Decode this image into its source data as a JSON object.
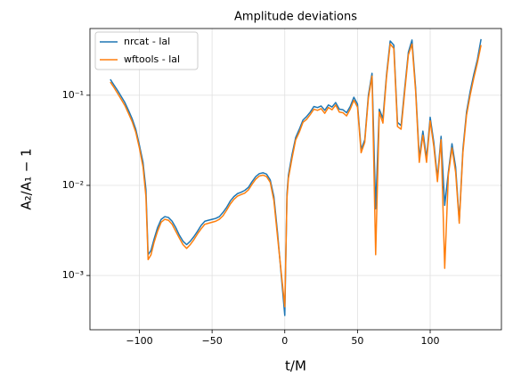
{
  "chart_data": {
    "type": "line",
    "title": "Amplitude deviations",
    "xlabel": "t/M",
    "ylabel": "A₂/A₁ − 1",
    "x": [
      -120,
      -117.5,
      -115,
      -112.5,
      -110,
      -107.5,
      -105,
      -102.5,
      -100,
      -97.5,
      -95.5,
      -94,
      -92,
      -90,
      -87.5,
      -85,
      -82.5,
      -80,
      -77.5,
      -75,
      -72.5,
      -70,
      -67.5,
      -65,
      -62.5,
      -60,
      -57.5,
      -55,
      -52.5,
      -50,
      -47.5,
      -45,
      -42.5,
      -40,
      -37.5,
      -35,
      -32.5,
      -30,
      -27.5,
      -25,
      -22.5,
      -20,
      -17.5,
      -15,
      -12.5,
      -10,
      -7.5,
      -5,
      0,
      1.5,
      2.5,
      5,
      7.5,
      10,
      12.5,
      15,
      17.5,
      20,
      22.5,
      25,
      27.5,
      30,
      32.5,
      35,
      37.5,
      40,
      42.5,
      45,
      47.5,
      50,
      52.5,
      55,
      57.5,
      60,
      62.5,
      65,
      67.5,
      70,
      72.5,
      75,
      77.5,
      80,
      82.5,
      85,
      87.5,
      90,
      92.5,
      95,
      97.5,
      100,
      102.5,
      105,
      107.5,
      110,
      112.5,
      115,
      117.5,
      120,
      122.5,
      125,
      127.5,
      130,
      132.5,
      135
    ],
    "series": [
      {
        "name": "nrcat - lal",
        "color": "#1f77b4",
        "values": [
          0.15,
          0.13,
          0.113,
          0.097,
          0.083,
          0.068,
          0.055,
          0.042,
          0.028,
          0.018,
          0.009,
          0.0017,
          0.0019,
          0.0025,
          0.0034,
          0.0042,
          0.0045,
          0.0044,
          0.004,
          0.0034,
          0.0028,
          0.0024,
          0.0022,
          0.0024,
          0.0027,
          0.0031,
          0.0036,
          0.004,
          0.0041,
          0.0042,
          0.0043,
          0.0045,
          0.005,
          0.0057,
          0.0067,
          0.0075,
          0.0081,
          0.0084,
          0.0088,
          0.0095,
          0.011,
          0.0125,
          0.0135,
          0.0138,
          0.0133,
          0.0115,
          0.0075,
          0.003,
          0.00036,
          0.008,
          0.013,
          0.022,
          0.034,
          0.042,
          0.053,
          0.058,
          0.065,
          0.075,
          0.073,
          0.076,
          0.068,
          0.078,
          0.074,
          0.083,
          0.07,
          0.069,
          0.064,
          0.075,
          0.095,
          0.08,
          0.025,
          0.032,
          0.1,
          0.175,
          0.0055,
          0.07,
          0.055,
          0.17,
          0.4,
          0.36,
          0.05,
          0.046,
          0.12,
          0.3,
          0.41,
          0.12,
          0.02,
          0.04,
          0.02,
          0.057,
          0.03,
          0.012,
          0.035,
          0.006,
          0.014,
          0.029,
          0.016,
          0.004,
          0.025,
          0.065,
          0.11,
          0.17,
          0.25,
          0.42
        ]
      },
      {
        "name": "wftools - lal",
        "color": "#ff7f0e",
        "values": [
          0.14,
          0.122,
          0.105,
          0.09,
          0.077,
          0.063,
          0.051,
          0.039,
          0.026,
          0.016,
          0.0075,
          0.0015,
          0.0017,
          0.0023,
          0.0031,
          0.0039,
          0.0042,
          0.0041,
          0.0037,
          0.0031,
          0.0026,
          0.0022,
          0.002,
          0.0022,
          0.0025,
          0.0029,
          0.0033,
          0.0037,
          0.0038,
          0.0039,
          0.004,
          0.0042,
          0.0046,
          0.0053,
          0.0062,
          0.007,
          0.0076,
          0.0079,
          0.0082,
          0.0089,
          0.0103,
          0.0117,
          0.0127,
          0.013,
          0.0125,
          0.0108,
          0.0068,
          0.0027,
          0.00045,
          0.0072,
          0.012,
          0.02,
          0.032,
          0.039,
          0.05,
          0.054,
          0.061,
          0.07,
          0.068,
          0.071,
          0.063,
          0.073,
          0.069,
          0.078,
          0.065,
          0.064,
          0.059,
          0.07,
          0.088,
          0.074,
          0.023,
          0.03,
          0.093,
          0.163,
          0.0017,
          0.065,
          0.049,
          0.16,
          0.37,
          0.33,
          0.045,
          0.042,
          0.11,
          0.28,
          0.37,
          0.11,
          0.018,
          0.036,
          0.018,
          0.052,
          0.027,
          0.011,
          0.032,
          0.0012,
          0.013,
          0.026,
          0.014,
          0.0038,
          0.023,
          0.06,
          0.1,
          0.155,
          0.23,
          0.36
        ]
      }
    ],
    "xlim": [
      -134,
      149
    ],
    "ylim": [
      0.00025,
      0.55
    ],
    "ylog": true,
    "xticks": [
      {
        "value": -100,
        "label": "−100"
      },
      {
        "value": -50,
        "label": "−50"
      },
      0,
      50,
      100
    ],
    "yticks": [
      {
        "value": 0.001,
        "label": "10⁻³"
      },
      {
        "value": 0.01,
        "label": "10⁻²"
      },
      {
        "value": 0.1,
        "label": "10⁻¹"
      }
    ],
    "grid": true,
    "legend": "upper left"
  }
}
